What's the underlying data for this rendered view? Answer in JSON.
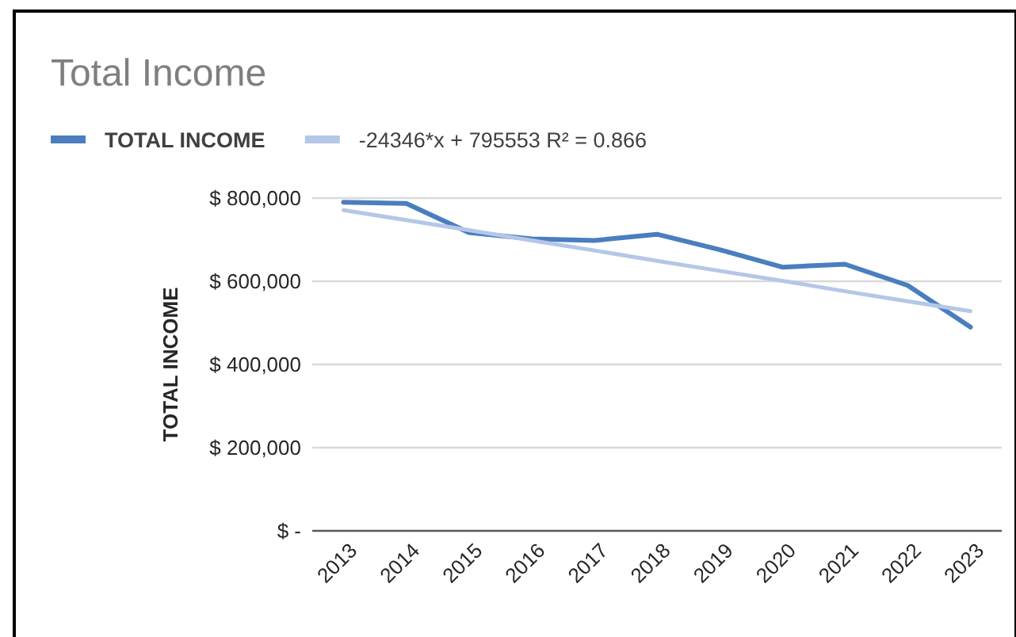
{
  "chart_data": {
    "type": "line",
    "title": "Total Income",
    "ylabel": "TOTAL INCOME",
    "categories": [
      "2013",
      "2014",
      "2015",
      "2016",
      "2017",
      "2018",
      "2019",
      "2020",
      "2021",
      "2022",
      "2023"
    ],
    "series": [
      {
        "name": "TOTAL INCOME",
        "color": "#4a7ebf",
        "values": [
          790000,
          787000,
          717000,
          702000,
          698000,
          713000,
          676000,
          634000,
          641000,
          590000,
          490000
        ]
      },
      {
        "name": "-24346*x + 795553 R² = 0.866",
        "type": "line",
        "color": "#b4c7e7",
        "values": [
          771000,
          747000,
          723000,
          698000,
          674000,
          649000,
          625000,
          601000,
          576000,
          552000,
          528000
        ]
      }
    ],
    "ylim": [
      0,
      800000
    ],
    "yticks": [
      {
        "value": 0,
        "label": "$ -"
      },
      {
        "value": 200000,
        "label": "$ 200,000"
      },
      {
        "value": 400000,
        "label": "$ 400,000"
      },
      {
        "value": 600000,
        "label": "$ 600,000"
      },
      {
        "value": 800000,
        "label": "$ 800,000"
      }
    ],
    "grid": "y",
    "legend": "top left",
    "marker": "none",
    "line_style": "solid"
  }
}
